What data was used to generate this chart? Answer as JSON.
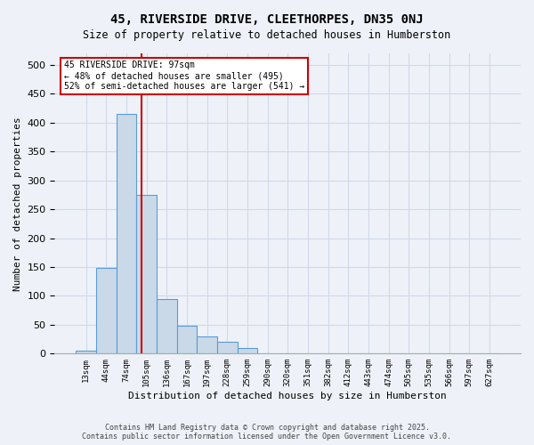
{
  "title_line1": "45, RIVERSIDE DRIVE, CLEETHORPES, DN35 0NJ",
  "title_line2": "Size of property relative to detached houses in Humberston",
  "xlabel": "Distribution of detached houses by size in Humberston",
  "ylabel": "Number of detached properties",
  "footer_line1": "Contains HM Land Registry data © Crown copyright and database right 2025.",
  "footer_line2": "Contains public sector information licensed under the Open Government Licence v3.0.",
  "bin_labels": [
    "13sqm",
    "44sqm",
    "74sqm",
    "105sqm",
    "136sqm",
    "167sqm",
    "197sqm",
    "228sqm",
    "259sqm",
    "290sqm",
    "320sqm",
    "351sqm",
    "382sqm",
    "412sqm",
    "443sqm",
    "474sqm",
    "505sqm",
    "535sqm",
    "566sqm",
    "597sqm",
    "627sqm"
  ],
  "bar_values": [
    5,
    148,
    415,
    275,
    95,
    48,
    30,
    20,
    10,
    0,
    0,
    0,
    0,
    0,
    0,
    0,
    0,
    0,
    0,
    0,
    0
  ],
  "bar_color": "#c9d9e8",
  "bar_edge_color": "#5b9bd5",
  "grid_color": "#d0d8e8",
  "background_color": "#eef2f8",
  "vline_color": "#cc0000",
  "annotation_text": "45 RIVERSIDE DRIVE: 97sqm\n← 48% of detached houses are smaller (495)\n52% of semi-detached houses are larger (541) →",
  "annotation_box_color": "#cc0000",
  "ylim": [
    0,
    520
  ],
  "yticks": [
    0,
    50,
    100,
    150,
    200,
    250,
    300,
    350,
    400,
    450,
    500
  ]
}
